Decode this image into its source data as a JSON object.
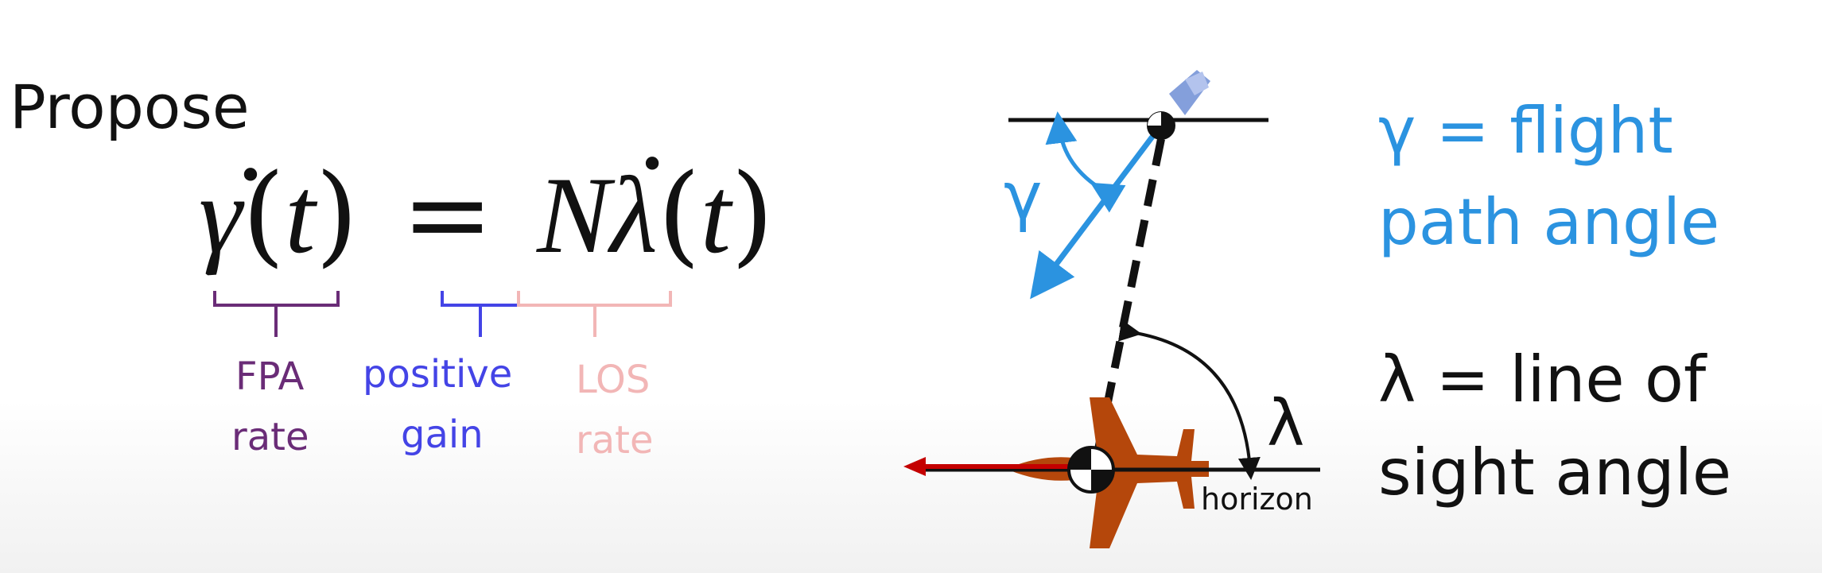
{
  "heading": "Propose",
  "equation": {
    "lhs_symbol": "γ",
    "lhs_arg": "t",
    "equals": "=",
    "gain_symbol": "N",
    "rhs_symbol": "λ",
    "rhs_arg": "t",
    "open_paren": "(",
    "close_paren": ")"
  },
  "braces": {
    "fpa_line1": "FPA",
    "fpa_line2": "rate",
    "gain_line1": "positive",
    "gain_line2": "gain",
    "los_line1": "LOS",
    "los_line2": "rate"
  },
  "diagram": {
    "gamma_symbol": "γ",
    "lambda_symbol": "λ",
    "horizon_label": "horizon"
  },
  "legend": {
    "gamma_line1": "γ = flight",
    "gamma_line2": "path angle",
    "lambda_line1": "λ = line of",
    "lambda_line2": "sight angle"
  },
  "colors": {
    "fpa": "#6a2c77",
    "gain": "#4444e6",
    "los": "#f2b6b6",
    "gamma": "#2b93e0",
    "jet": "#b5470b",
    "velocity_arrow": "#c40000",
    "black": "#111111"
  }
}
